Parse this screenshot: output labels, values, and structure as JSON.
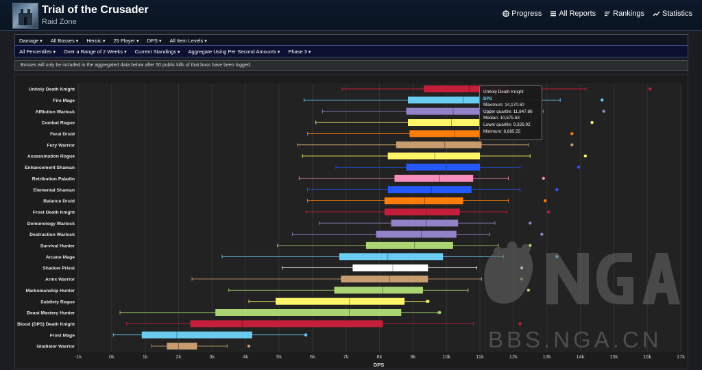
{
  "header": {
    "title": "Trial of the Crusader",
    "subtitle": "Raid Zone"
  },
  "nav": [
    {
      "label": "Progress",
      "icon": "globe-icon"
    },
    {
      "label": "All Reports",
      "icon": "list-icon"
    },
    {
      "label": "Rankings",
      "icon": "bars-icon"
    },
    {
      "label": "Statistics",
      "icon": "trend-icon"
    }
  ],
  "filters_row1": [
    "Damage",
    "All Bosses",
    "Heroic",
    "25 Player",
    "DPS",
    "All Item Levels"
  ],
  "filters_row2": [
    "All Percentiles",
    "Over a Range of 2 Weeks",
    "Current Standings",
    "Aggregate Using Per Second Amounts",
    "Phase 3"
  ],
  "notice": "Bosses will only be included in the aggregated data below after 50 public kills of that boss have been logged.",
  "tooltip": {
    "title": "Unholy Death Knight",
    "series": "DPS",
    "lines": [
      "Maximum: 14,170.60",
      "Upper quartile: 11,847.86",
      "Median: 10,675.63",
      "Lower quartile: 9,326.92",
      "Minimum: 6,885.55"
    ]
  },
  "watermark": {
    "text": "BBS.NGA.CN",
    "logo": "NGA"
  },
  "chart_data": {
    "type": "boxplot",
    "title": "",
    "xlabel": "DPS",
    "ylabel": "",
    "xlim": [
      -1000,
      17000
    ],
    "ticks": [
      "-1k",
      "0k",
      "1k",
      "2k",
      "3k",
      "4k",
      "5k",
      "6k",
      "7k",
      "8k",
      "9k",
      "10k",
      "11k",
      "12k",
      "13k",
      "14k",
      "15k",
      "16k",
      "17k"
    ],
    "tick_values": [
      -1000,
      0,
      1000,
      2000,
      3000,
      4000,
      5000,
      6000,
      7000,
      8000,
      9000,
      10000,
      11000,
      12000,
      13000,
      14000,
      15000,
      16000,
      17000
    ],
    "series": [
      {
        "name": "Unholy Death Knight",
        "color": "#c41e3a",
        "min": 6885.55,
        "q1": 9326.92,
        "median": 10675.63,
        "q3": 11847.86,
        "max": 14170.6,
        "outlier": 16080
      },
      {
        "name": "Fire Mage",
        "color": "#69ccf0",
        "min": 5750,
        "q1": 8850,
        "median": 10500,
        "q3": 11300,
        "max": 13400,
        "outlier": 14650
      },
      {
        "name": "Affliction Warlock",
        "color": "#9482c9",
        "min": 6300,
        "q1": 8800,
        "median": 10200,
        "q3": 11400,
        "max": 12900,
        "outlier": 14700
      },
      {
        "name": "Combat Rogue",
        "color": "#fff569",
        "min": 6100,
        "q1": 8850,
        "median": 10150,
        "q3": 11000,
        "max": 12500,
        "outlier": 14350
      },
      {
        "name": "Feral Druid",
        "color": "#ff7d0a",
        "min": 5850,
        "q1": 8900,
        "median": 10250,
        "q3": 11050,
        "max": 12350,
        "outlier": 13750
      },
      {
        "name": "Fury Warrior",
        "color": "#c79c6e",
        "min": 5550,
        "q1": 8500,
        "median": 9950,
        "q3": 11050,
        "max": 12450,
        "outlier": 13750
      },
      {
        "name": "Assassination Rogue",
        "color": "#fff569",
        "min": 5700,
        "q1": 8250,
        "median": 9650,
        "q3": 11000,
        "max": 12500,
        "outlier": 14150
      },
      {
        "name": "Enhancement Shaman",
        "color": "#2459ff",
        "min": 6700,
        "q1": 8800,
        "median": 10000,
        "q3": 11000,
        "max": 12200,
        "outlier": 13950
      },
      {
        "name": "Retribution Paladin",
        "color": "#f58cba",
        "min": 5600,
        "q1": 8450,
        "median": 9800,
        "q3": 10800,
        "max": 11850,
        "outlier": 12900
      },
      {
        "name": "Elemental Shaman",
        "color": "#2459ff",
        "min": 5850,
        "q1": 8250,
        "median": 9550,
        "q3": 10750,
        "max": 12200,
        "outlier": 13300
      },
      {
        "name": "Balance Druid",
        "color": "#ff7d0a",
        "min": 5850,
        "q1": 8150,
        "median": 9350,
        "q3": 10500,
        "max": 11850,
        "outlier": 12950
      },
      {
        "name": "Frost Death Knight",
        "color": "#c41e3a",
        "min": 5800,
        "q1": 8150,
        "median": 9400,
        "q3": 10400,
        "max": 11800,
        "outlier": 13050
      },
      {
        "name": "Demonology Warlock",
        "color": "#9482c9",
        "min": 6200,
        "q1": 8350,
        "median": 9400,
        "q3": 10350,
        "max": 11450,
        "outlier": 12500
      },
      {
        "name": "Destruction Warlock",
        "color": "#9482c9",
        "min": 5400,
        "q1": 7900,
        "median": 9250,
        "q3": 10300,
        "max": 11300,
        "outlier": 12850
      },
      {
        "name": "Survival Hunter",
        "color": "#abd473",
        "min": 4950,
        "q1": 7600,
        "median": 9050,
        "q3": 10200,
        "max": 11550,
        "outlier": 12500
      },
      {
        "name": "Arcane Mage",
        "color": "#69ccf0",
        "min": 3300,
        "q1": 6800,
        "median": 8250,
        "q3": 9900,
        "max": 11700,
        "outlier": 13300
      },
      {
        "name": "Shadow Priest",
        "color": "#ffffff",
        "min": 5100,
        "q1": 7200,
        "median": 8400,
        "q3": 9450,
        "max": 10900,
        "outlier": 12250
      },
      {
        "name": "Arms Warrior",
        "color": "#c79c6e",
        "min": 2400,
        "q1": 6850,
        "median": 8300,
        "q3": 9450,
        "max": 11050,
        "outlier": 12250
      },
      {
        "name": "Marksmanship Hunter",
        "color": "#abd473",
        "min": 3500,
        "q1": 6650,
        "median": 8100,
        "q3": 9300,
        "max": 10650,
        "outlier": 12450
      },
      {
        "name": "Subtlety Rogue",
        "color": "#fff569",
        "min": 4100,
        "q1": 4900,
        "median": 7100,
        "q3": 8750,
        "max": 9400,
        "outlier": 9450
      },
      {
        "name": "Beast Mastery Hunter",
        "color": "#abd473",
        "min": 250,
        "q1": 3100,
        "median": 7100,
        "q3": 8650,
        "max": 9750,
        "outlier": 9800
      },
      {
        "name": "Blood (DPS) Death Knight",
        "color": "#c41e3a",
        "min": 450,
        "q1": 2350,
        "median": 3900,
        "q3": 8100,
        "max": 10800,
        "outlier": 12200
      },
      {
        "name": "Frost Mage",
        "color": "#69ccf0",
        "min": 50,
        "q1": 900,
        "median": 1950,
        "q3": 4200,
        "max": 5800,
        "outlier": 5800
      },
      {
        "name": "Gladiator Warrior",
        "color": "#c79c6e",
        "min": 1200,
        "q1": 1650,
        "median": 2000,
        "q3": 2550,
        "max": 3450,
        "outlier": 4100
      }
    ]
  }
}
